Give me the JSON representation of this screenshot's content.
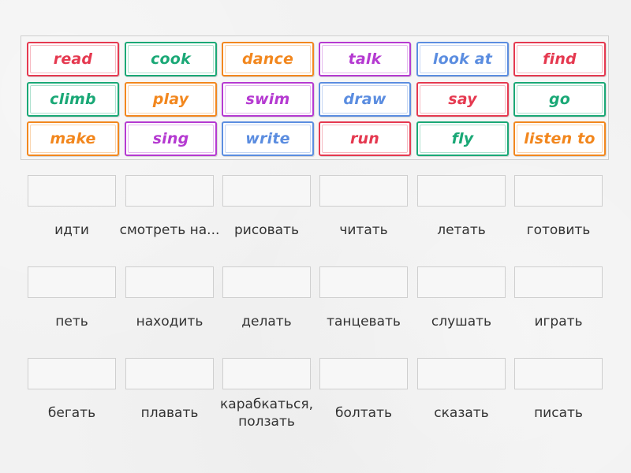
{
  "colors": {
    "red": "#e53950",
    "green": "#1aa876",
    "orange": "#f2871e",
    "purple": "#b53ad1",
    "blue": "#5b8de0"
  },
  "tiles": [
    {
      "label": "read",
      "color": "red"
    },
    {
      "label": "cook",
      "color": "green"
    },
    {
      "label": "dance",
      "color": "orange"
    },
    {
      "label": "talk",
      "color": "purple"
    },
    {
      "label": "look at",
      "color": "blue"
    },
    {
      "label": "find",
      "color": "red"
    },
    {
      "label": "climb",
      "color": "green"
    },
    {
      "label": "play",
      "color": "orange"
    },
    {
      "label": "swim",
      "color": "purple"
    },
    {
      "label": "draw",
      "color": "blue"
    },
    {
      "label": "say",
      "color": "red"
    },
    {
      "label": "go",
      "color": "green"
    },
    {
      "label": "make",
      "color": "orange"
    },
    {
      "label": "sing",
      "color": "purple"
    },
    {
      "label": "write",
      "color": "blue"
    },
    {
      "label": "run",
      "color": "red"
    },
    {
      "label": "fly",
      "color": "green"
    },
    {
      "label": "listen to",
      "color": "orange"
    }
  ],
  "targets": [
    {
      "label": "идти"
    },
    {
      "label": "смотреть на..."
    },
    {
      "label": "рисовать"
    },
    {
      "label": "читать"
    },
    {
      "label": "летать"
    },
    {
      "label": "готовить"
    },
    {
      "label": "петь"
    },
    {
      "label": "находить"
    },
    {
      "label": "делать"
    },
    {
      "label": "танцевать"
    },
    {
      "label": "слушать"
    },
    {
      "label": "играть"
    },
    {
      "label": "бегать"
    },
    {
      "label": "плавать"
    },
    {
      "label": "карабкаться, ползать"
    },
    {
      "label": "болтать"
    },
    {
      "label": "сказать"
    },
    {
      "label": "писать"
    }
  ]
}
